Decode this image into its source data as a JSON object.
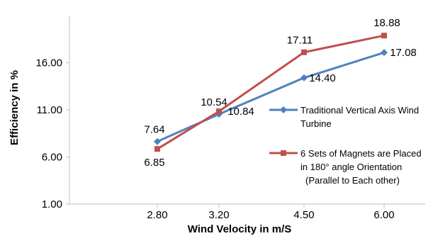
{
  "chart_data": {
    "type": "line",
    "xlabel": "Wind Velocity in m/S",
    "ylabel": "Efficiency in %",
    "categories": [
      "2.80",
      "3.20",
      "4.50",
      "6.00"
    ],
    "yticks": [
      "1.00",
      "6.00",
      "11.00",
      "16.00"
    ],
    "ylim": [
      1,
      21
    ],
    "grid": false,
    "legend_position": "right",
    "series": [
      {
        "name": "Traditional Vertical Axis Wind Turbine",
        "legend_lines": [
          "Traditional Vertical Axis Wind",
          "Turbine"
        ],
        "values": [
          7.64,
          10.54,
          14.4,
          17.08
        ],
        "labels": [
          "7.64",
          "10.54",
          "14.40",
          "17.08"
        ],
        "color": "#4f81bd",
        "marker": "diamond"
      },
      {
        "name": "6 Sets of Magnets are Placed in 180° angle Orientation (Parallel to Each other)",
        "legend_lines": [
          "6 Sets of Magnets are Placed",
          "in 180° angle Orientation",
          "(Parallel to Each other)"
        ],
        "values": [
          6.85,
          10.84,
          17.11,
          18.88
        ],
        "labels": [
          "6.85",
          "10.84",
          "17.11",
          "18.88"
        ],
        "color": "#c0504d",
        "marker": "square"
      }
    ]
  }
}
